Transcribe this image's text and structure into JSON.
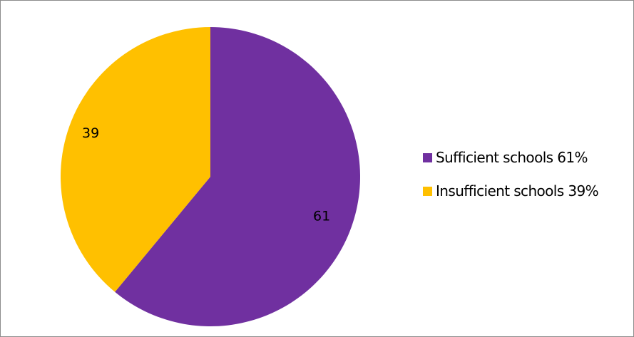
{
  "chart_data": {
    "type": "pie",
    "categories": [
      "Sufficient schools 61%",
      "Insufficient schools 39%"
    ],
    "values": [
      61,
      39
    ],
    "data_labels": [
      "61",
      "39"
    ],
    "colors": [
      "#7030A0",
      "#FFC000"
    ],
    "start_angle_deg": 0,
    "direction": "clockwise",
    "legend": {
      "position": "right",
      "entries": [
        "Sufficient schools 61%",
        "Insufficient schools 39%"
      ]
    }
  }
}
